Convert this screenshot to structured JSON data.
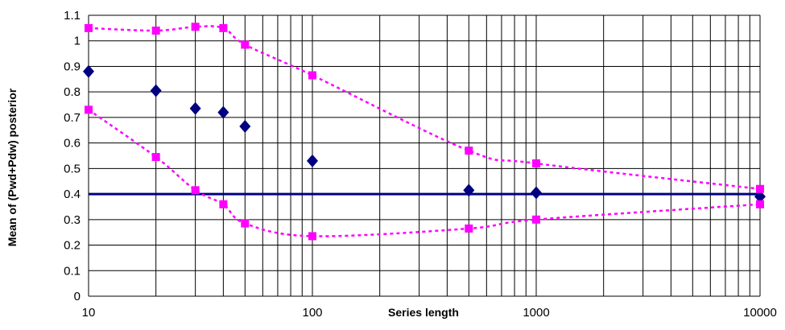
{
  "chart_data": {
    "type": "scatter",
    "title": "",
    "xlabel": "Series length",
    "ylabel": "Mean of (Pwd+Pdw) posterior",
    "x_scale": "log",
    "xlim": [
      10,
      10000
    ],
    "ylim": [
      0,
      1.1
    ],
    "x_tick_labels": [
      "10",
      "100",
      "1000",
      "10000"
    ],
    "y_tick_labels": [
      "0",
      "0.1",
      "0.2",
      "0.3",
      "0.4",
      "0.5",
      "0.6",
      "0.7",
      "0.8",
      "0.9",
      "1",
      "1.1"
    ],
    "grid": true,
    "legend": "none",
    "series": [
      {
        "kind": "markers",
        "marker": "diamond",
        "color": "#000080",
        "x": [
          10,
          20,
          30,
          40,
          50,
          100,
          500,
          1000,
          10000
        ],
        "y": [
          0.88,
          0.805,
          0.735,
          0.72,
          0.665,
          0.53,
          0.415,
          0.405,
          0.39
        ]
      },
      {
        "kind": "dotted-line",
        "marker": "square",
        "color": "#ff00ff",
        "x": [
          10,
          20,
          30,
          40,
          50,
          100,
          500,
          1000,
          10000
        ],
        "y": [
          1.05,
          1.04,
          1.055,
          1.05,
          0.985,
          0.865,
          0.57,
          0.52,
          0.42
        ]
      },
      {
        "kind": "dotted-line",
        "marker": "square",
        "color": "#ff00ff",
        "x": [
          10,
          20,
          30,
          40,
          50,
          100,
          500,
          1000,
          10000
        ],
        "y": [
          0.73,
          0.545,
          0.415,
          0.36,
          0.285,
          0.235,
          0.265,
          0.3,
          0.36
        ]
      }
    ],
    "reference_line": {
      "y": 0.4,
      "color": "#000080"
    }
  }
}
